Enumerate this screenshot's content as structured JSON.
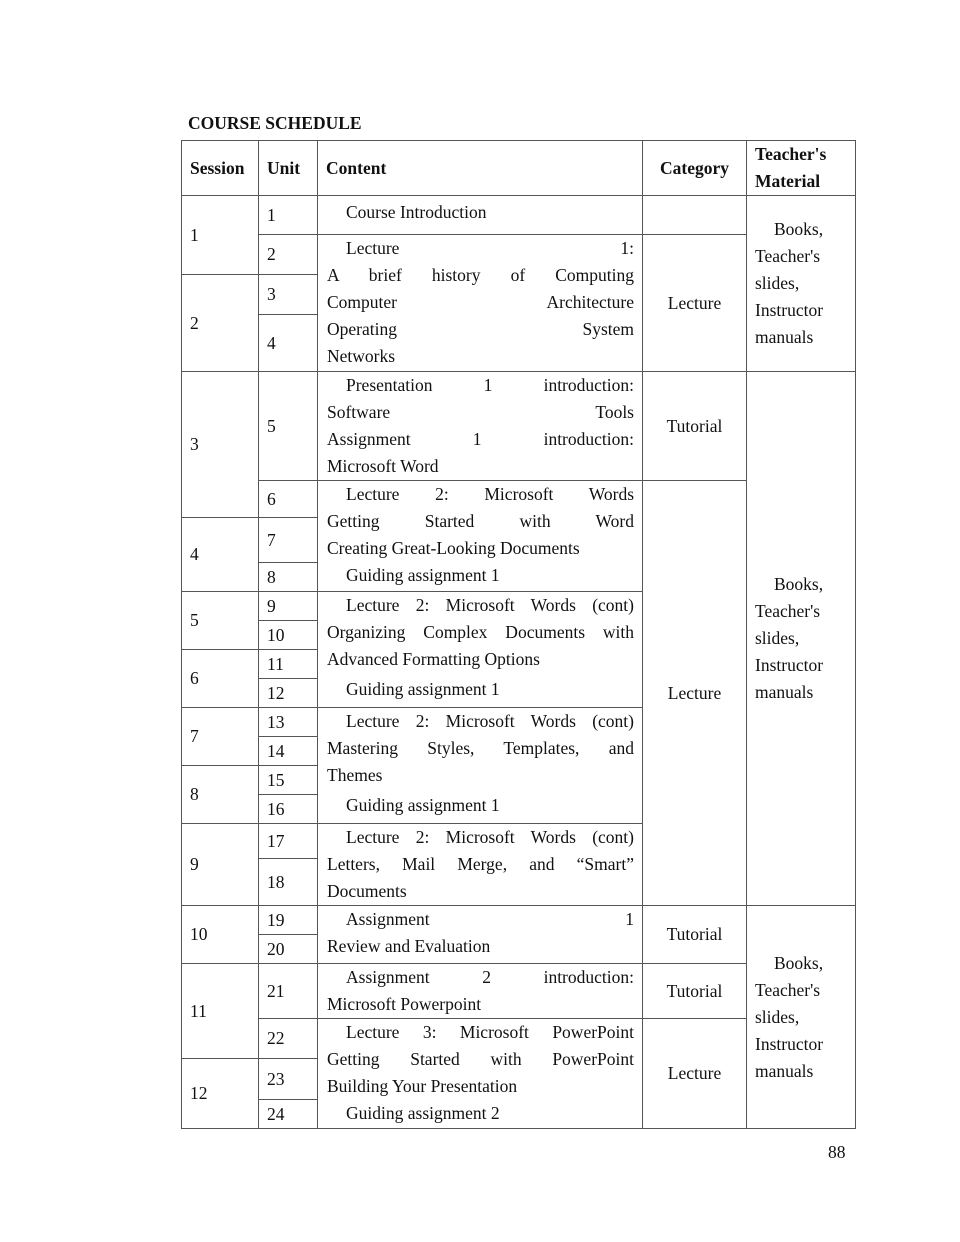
{
  "title": "COURSE SCHEDULE",
  "page_number": "88",
  "header": {
    "session": "Session",
    "unit": "Unit",
    "content": "Content",
    "category": "Category",
    "material_1": "Teacher's",
    "material_2": "Material"
  },
  "sessions": [
    "1",
    "2",
    "3",
    "4",
    "5",
    "6",
    "7",
    "8",
    "9",
    "10",
    "11",
    "12"
  ],
  "units": [
    "1",
    "2",
    "3",
    "4",
    "5",
    "6",
    "7",
    "8",
    "9",
    "10",
    "11",
    "12",
    "13",
    "14",
    "15",
    "16",
    "17",
    "18",
    "19",
    "20",
    "21",
    "22",
    "23",
    "24"
  ],
  "contents": [
    {
      "lines": [
        "Course Introduction"
      ]
    },
    {
      "lines": [
        "Lecture 1:",
        "A brief history of Computing",
        "Computer Architecture",
        "Operating System",
        "Networks"
      ]
    },
    {
      "lines": [
        "Presentation 1 introduction:",
        "Software Tools",
        "Assignment 1 introduction:",
        "Microsoft Word"
      ]
    },
    {
      "lines": [
        "Lecture 2: Microsoft Words",
        "Getting Started with Word",
        "Creating Great-Looking Documents",
        "Guiding assignment 1"
      ]
    },
    {
      "lines": [
        "Lecture 2: Microsoft Words (cont)",
        "Organizing Complex Documents with",
        "Advanced Formatting Options",
        "Guiding assignment 1"
      ]
    },
    {
      "lines": [
        "Lecture 2: Microsoft Words (cont)",
        "Mastering Styles, Templates, and",
        "Themes",
        "Guiding assignment 1"
      ]
    },
    {
      "lines": [
        "Lecture 2: Microsoft Words (cont)",
        "Letters, Mail Merge, and “Smart”",
        "Documents"
      ]
    },
    {
      "lines": [
        "Assignment 1",
        "Review and Evaluation"
      ]
    },
    {
      "lines": [
        "Assignment 2 introduction:",
        "Microsoft Powerpoint"
      ]
    },
    {
      "lines": [
        "Lecture 3: Microsoft PowerPoint",
        "Getting Started with PowerPoint",
        "Building Your Presentation",
        "Guiding assignment 2"
      ]
    }
  ],
  "categories": [
    "",
    "Lecture",
    "Tutorial",
    "Lecture",
    "Tutorial",
    "Tutorial",
    "Lecture"
  ],
  "materials": [
    {
      "lines": [
        "Books,",
        "Teacher's",
        "slides,",
        "Instructor",
        "manuals"
      ]
    },
    {
      "lines": [
        "Books,",
        "Teacher's",
        "slides,",
        "Instructor",
        "manuals"
      ]
    },
    {
      "lines": [
        "Books,",
        "Teacher's",
        "slides,",
        "Instructor",
        "manuals"
      ]
    }
  ]
}
